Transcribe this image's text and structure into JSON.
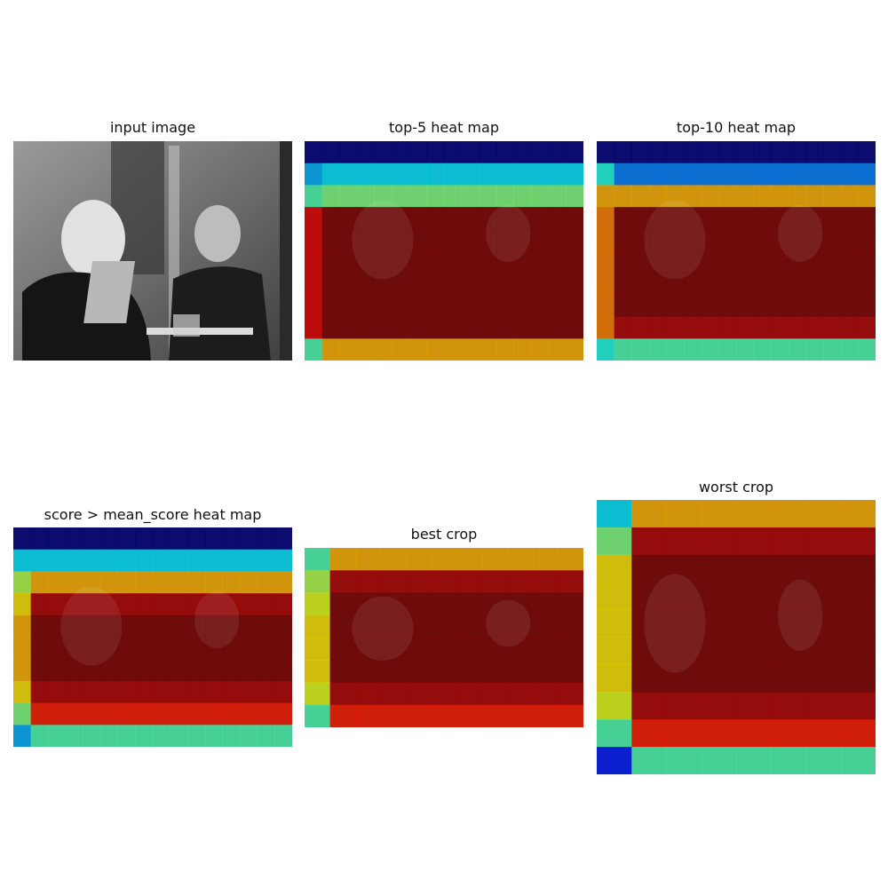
{
  "figure": {
    "titles": {
      "input": "input image",
      "top5": "top-5 heat map",
      "top10": "top-10 heat map",
      "mean": "score > mean_score heat map",
      "best": "best crop",
      "worst": "worst crop"
    }
  },
  "chart_data": [
    {
      "type": "heatmap",
      "title": "top-5 heat map",
      "rows": 10,
      "cols": 16,
      "row_values": [
        0.0,
        0.35,
        0.5,
        1.0,
        1.0,
        1.0,
        1.0,
        1.0,
        1.0,
        0.7
      ],
      "first_col_values": [
        0.0,
        0.3,
        0.45,
        0.9,
        0.9,
        0.9,
        0.9,
        0.9,
        0.9,
        0.45
      ],
      "colors": {
        "low": "#00007f",
        "mid": "#7fff7f",
        "high": "#e00000"
      }
    },
    {
      "type": "heatmap",
      "title": "top-10 heat map",
      "rows": 10,
      "cols": 16,
      "row_values": [
        0.0,
        0.25,
        0.7,
        1.0,
        1.0,
        1.0,
        1.0,
        1.0,
        0.95,
        0.45
      ],
      "first_col_values": [
        0.0,
        0.4,
        0.7,
        0.75,
        0.75,
        0.75,
        0.75,
        0.75,
        0.75,
        0.4
      ],
      "colors": {
        "low": "#00007f",
        "mid": "#7fff7f",
        "high": "#e00000"
      }
    },
    {
      "type": "heatmap",
      "title": "score > mean_score heat map",
      "rows": 10,
      "cols": 16,
      "row_values": [
        0.0,
        0.35,
        0.7,
        0.95,
        1.0,
        1.0,
        1.0,
        0.95,
        0.85,
        0.45
      ],
      "first_col_values": [
        0.0,
        0.35,
        0.55,
        0.65,
        0.7,
        0.7,
        0.7,
        0.65,
        0.5,
        0.3
      ],
      "colors": {
        "low": "#00007f",
        "mid": "#7fff7f",
        "high": "#e00000"
      }
    },
    {
      "type": "heatmap",
      "title": "best crop",
      "rows": 8,
      "cols": 11,
      "row_values": [
        0.7,
        0.95,
        1.0,
        1.0,
        1.0,
        1.0,
        0.95,
        0.85
      ],
      "first_col_values": [
        0.45,
        0.55,
        0.6,
        0.65,
        0.65,
        0.65,
        0.6,
        0.45
      ],
      "colors": {
        "low": "#00007f",
        "mid": "#7fff7f",
        "high": "#e00000"
      }
    },
    {
      "type": "heatmap",
      "title": "worst crop",
      "rows": 10,
      "cols": 8,
      "row_values": [
        0.7,
        0.95,
        1.0,
        1.0,
        1.0,
        1.0,
        1.0,
        0.95,
        0.85,
        0.45
      ],
      "first_col_values": [
        0.35,
        0.5,
        0.65,
        0.65,
        0.65,
        0.65,
        0.65,
        0.6,
        0.45,
        0.15
      ],
      "colors": {
        "low": "#00007f",
        "mid": "#7fff7f",
        "high": "#e00000"
      }
    }
  ]
}
